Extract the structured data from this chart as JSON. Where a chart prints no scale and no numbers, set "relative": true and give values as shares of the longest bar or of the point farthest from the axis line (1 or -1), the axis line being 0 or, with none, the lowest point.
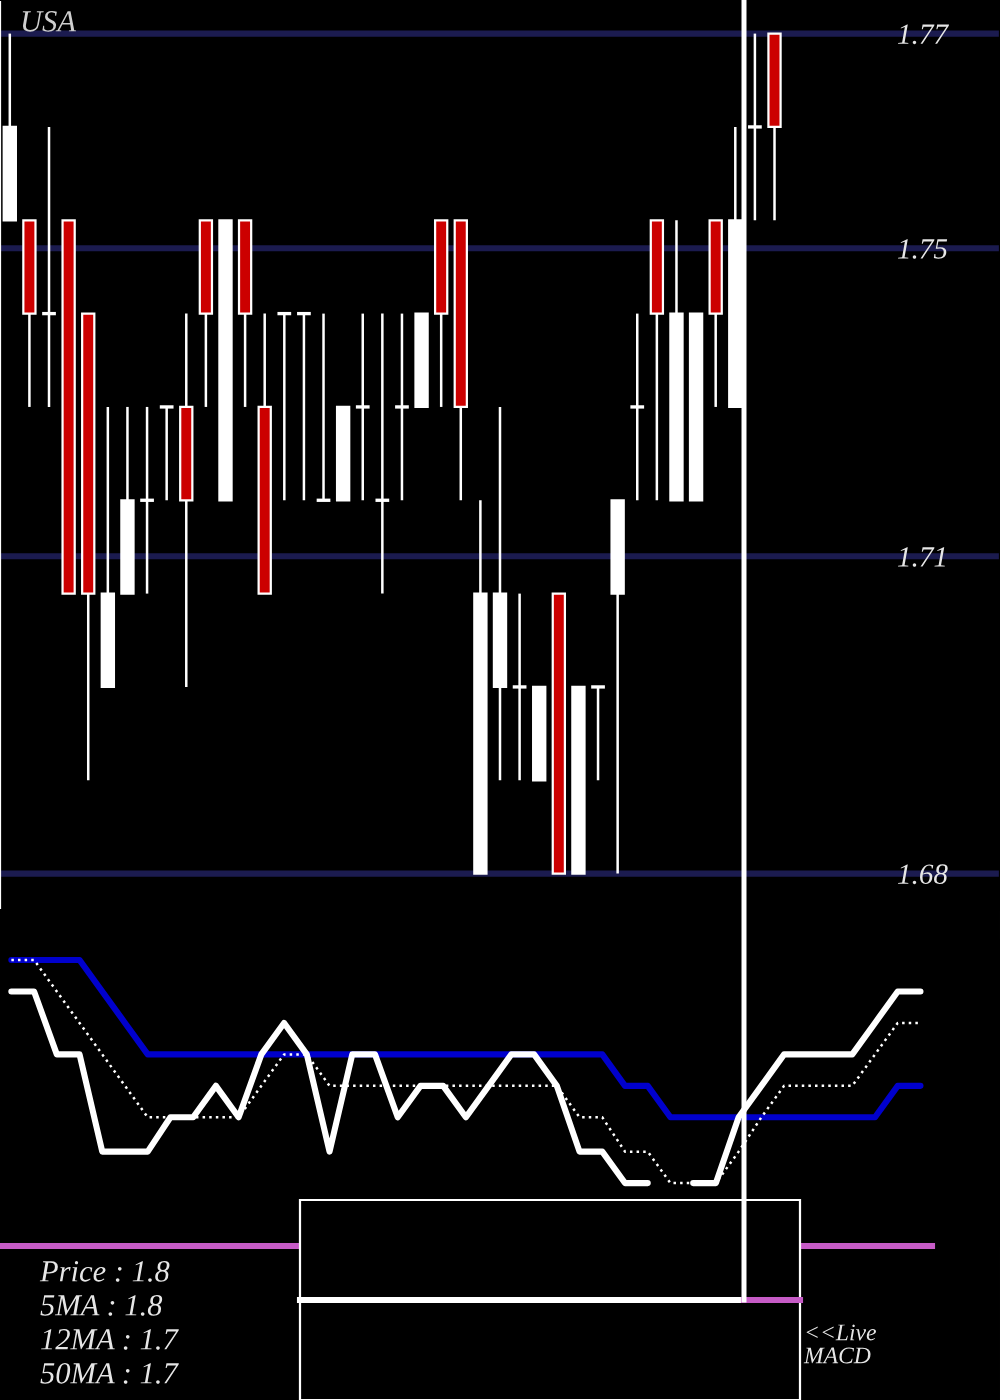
{
  "chart_data": [
    {
      "type": "candlestick",
      "title": "USA",
      "categories": [
        null,
        null,
        null,
        null,
        null,
        null,
        null,
        null,
        null,
        null,
        null,
        null,
        null,
        null,
        null,
        null,
        null,
        null,
        null,
        null,
        null,
        null,
        null,
        null,
        null,
        null,
        null,
        null,
        null,
        null,
        null,
        null,
        null,
        null,
        null,
        null,
        null,
        null,
        null,
        null,
        null,
        null,
        null,
        null,
        null,
        null,
        null,
        null,
        null,
        null,
        null
      ],
      "ohlc": [
        [
          1.75,
          1.77,
          1.75,
          1.76
        ],
        [
          1.75,
          1.75,
          1.73,
          1.74
        ],
        [
          1.74,
          1.76,
          1.73,
          1.74
        ],
        [
          1.75,
          1.75,
          1.71,
          1.71
        ],
        [
          1.74,
          1.74,
          1.69,
          1.71
        ],
        [
          1.7,
          1.73,
          1.7,
          1.71
        ],
        [
          1.71,
          1.73,
          1.71,
          1.72
        ],
        [
          1.72,
          1.73,
          1.71,
          1.72
        ],
        [
          1.73,
          1.73,
          1.72,
          1.73
        ],
        [
          1.73,
          1.74,
          1.7,
          1.72
        ],
        [
          1.75,
          1.75,
          1.73,
          1.74
        ],
        [
          1.72,
          1.75,
          1.72,
          1.75
        ],
        [
          1.75,
          1.75,
          1.73,
          1.74
        ],
        [
          1.73,
          1.74,
          1.71,
          1.71
        ],
        [
          1.74,
          1.74,
          1.72,
          1.74
        ],
        [
          1.74,
          1.74,
          1.72,
          1.74
        ],
        [
          1.72,
          1.74,
          1.72,
          1.72
        ],
        [
          1.72,
          1.73,
          1.72,
          1.73
        ],
        [
          1.73,
          1.74,
          1.72,
          1.73
        ],
        [
          1.72,
          1.74,
          1.71,
          1.72
        ],
        [
          1.73,
          1.74,
          1.72,
          1.73
        ],
        [
          1.73,
          1.74,
          1.73,
          1.74
        ],
        [
          1.75,
          1.75,
          1.73,
          1.74
        ],
        [
          1.75,
          1.75,
          1.72,
          1.73
        ],
        [
          1.68,
          1.72,
          1.68,
          1.71
        ],
        [
          1.7,
          1.73,
          1.69,
          1.71
        ],
        [
          1.7,
          1.71,
          1.69,
          1.7
        ],
        [
          1.69,
          1.7,
          1.69,
          1.7
        ],
        [
          1.71,
          1.71,
          1.68,
          1.68
        ],
        [
          1.68,
          1.7,
          1.68,
          1.7
        ],
        [
          1.7,
          1.7,
          1.69,
          1.7
        ],
        [
          1.71,
          1.72,
          1.68,
          1.72
        ],
        [
          1.73,
          1.74,
          1.72,
          1.73
        ],
        [
          1.75,
          1.75,
          1.72,
          1.74
        ],
        [
          1.72,
          1.75,
          1.72,
          1.74
        ],
        [
          1.72,
          1.74,
          1.72,
          1.74
        ],
        [
          1.75,
          1.75,
          1.73,
          1.74
        ],
        [
          1.73,
          1.76,
          1.73,
          1.75
        ],
        [
          1.76,
          1.77,
          1.75,
          1.76
        ],
        [
          1.77,
          1.77,
          1.75,
          1.76
        ],
        null,
        null,
        null,
        null,
        null,
        null,
        null,
        null,
        null,
        null,
        null
      ],
      "colors": [
        "#ffffff",
        "#cc0000",
        "#ffffff",
        "#cc0000",
        "#cc0000",
        "#ffffff",
        "#ffffff",
        "#ffffff",
        "#ffffff",
        "#cc0000",
        "#cc0000",
        "#ffffff",
        "#cc0000",
        "#cc0000",
        "#ffffff",
        "#ffffff",
        "#ffffff",
        "#ffffff",
        "#ffffff",
        "#ffffff",
        "#ffffff",
        "#ffffff",
        "#cc0000",
        "#cc0000",
        "#ffffff",
        "#ffffff",
        "#ffffff",
        "#ffffff",
        "#cc0000",
        "#ffffff",
        "#ffffff",
        "#ffffff",
        "#ffffff",
        "#cc0000",
        "#ffffff",
        "#ffffff",
        "#cc0000",
        "#ffffff",
        "#ffffff",
        "#cc0000",
        null,
        null,
        null,
        null,
        null,
        null,
        null,
        null,
        null,
        null,
        null
      ],
      "ylim": [
        1.6761,
        1.7736
      ],
      "yticks": [
        1.77,
        {
          "value": 1.747,
          "label": "1.75"
        },
        {
          "value": 1.714,
          "label": "1.71"
        },
        1.68
      ],
      "grid": "y",
      "tick_labels": "y"
    },
    {
      "type": "line",
      "relative": true,
      "categories": [
        null,
        null,
        null,
        null,
        null,
        null,
        null,
        null,
        null,
        null,
        null,
        null,
        null,
        null,
        null,
        null,
        null,
        null,
        null,
        null,
        null,
        null,
        null,
        null,
        null,
        null,
        null,
        null,
        null,
        null,
        null,
        null,
        null,
        null,
        null,
        null,
        null,
        null,
        null,
        null,
        null,
        null,
        null,
        null
      ],
      "series": [
        {
          "color": "#0000cc",
          "values": [
            1.0,
            1.0,
            1.0,
            1.0,
            0.89,
            0.78,
            0.67,
            0.67,
            0.67,
            0.67,
            0.67,
            0.67,
            0.67,
            0.67,
            0.67,
            0.67,
            0.67,
            0.67,
            0.67,
            0.67,
            0.67,
            0.67,
            0.67,
            0.67,
            0.67,
            0.67,
            0.67,
            0.56,
            0.56,
            0.45,
            0.45,
            0.45,
            0.45,
            0.45,
            0.45,
            0.45,
            0.45,
            0.45,
            0.45,
            0.56,
            0.56,
            null,
            null,
            null
          ]
        },
        {
          "color": "#ffffff",
          "line_style": "dotted",
          "values": [
            1.0,
            1.0,
            0.89,
            0.78,
            0.67,
            0.56,
            0.45,
            0.45,
            0.45,
            0.45,
            0.45,
            0.56,
            0.67,
            0.67,
            0.56,
            0.56,
            0.56,
            0.56,
            0.56,
            0.56,
            0.56,
            0.56,
            0.56,
            0.56,
            0.56,
            0.45,
            0.45,
            0.33,
            0.33,
            0.22,
            0.22,
            0.22,
            0.33,
            0.45,
            0.56,
            0.56,
            0.56,
            0.56,
            0.67,
            0.78,
            0.78,
            null,
            null,
            null
          ]
        },
        {
          "color": "#ffffff",
          "values": [
            0.89,
            0.89,
            0.67,
            0.67,
            0.33,
            0.33,
            0.33,
            0.45,
            0.45,
            0.56,
            0.45,
            0.67,
            0.78,
            0.67,
            0.33,
            0.67,
            0.67,
            0.45,
            0.56,
            0.56,
            0.45,
            0.56,
            0.67,
            0.67,
            0.56,
            0.33,
            0.33,
            0.22,
            0.22,
            null,
            0.22,
            0.22,
            0.45,
            0.56,
            0.67,
            0.67,
            0.67,
            0.67,
            0.78,
            0.89,
            0.89,
            null,
            null,
            null
          ]
        }
      ],
      "tick_labels": false,
      "annotations": [
        "Price : 1.8",
        "5MA : 1.8",
        "12MA : 1.7",
        "50MA : 1.7",
        "<<Live\nMACD"
      ]
    }
  ]
}
